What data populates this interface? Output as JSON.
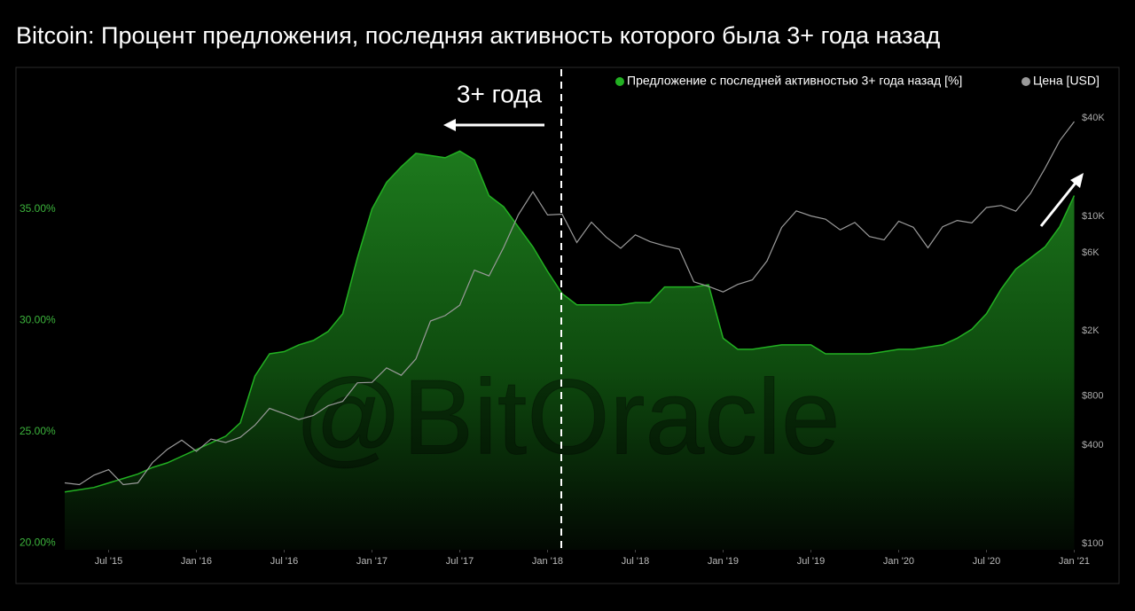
{
  "chart_data": {
    "type": "line",
    "title": "Bitcoin: Процент предложения, последняя активность которого была 3+ года назад",
    "annotation": "3+ года",
    "watermark": "@BitOracle",
    "x": [
      "2015-04",
      "2015-05",
      "2015-06",
      "2015-07",
      "2015-08",
      "2015-09",
      "2015-10",
      "2015-11",
      "2015-12",
      "2016-01",
      "2016-02",
      "2016-03",
      "2016-04",
      "2016-05",
      "2016-06",
      "2016-07",
      "2016-08",
      "2016-09",
      "2016-10",
      "2016-11",
      "2016-12",
      "2017-01",
      "2017-02",
      "2017-03",
      "2017-04",
      "2017-05",
      "2017-06",
      "2017-07",
      "2017-08",
      "2017-09",
      "2017-10",
      "2017-11",
      "2017-12",
      "2018-01",
      "2018-02",
      "2018-03",
      "2018-04",
      "2018-05",
      "2018-06",
      "2018-07",
      "2018-08",
      "2018-09",
      "2018-10",
      "2018-11",
      "2018-12",
      "2019-01",
      "2019-02",
      "2019-03",
      "2019-04",
      "2019-05",
      "2019-06",
      "2019-07",
      "2019-08",
      "2019-09",
      "2019-10",
      "2019-11",
      "2019-12",
      "2020-01",
      "2020-02",
      "2020-03",
      "2020-04",
      "2020-05",
      "2020-06",
      "2020-07",
      "2020-08",
      "2020-09",
      "2020-10",
      "2020-11",
      "2020-12",
      "2021-01"
    ],
    "series": [
      {
        "name": "Предложение с последней активностью 3+ года назад [%]",
        "type": "area",
        "color": "#22b022",
        "axis": "y",
        "values": [
          22.3,
          22.4,
          22.5,
          22.7,
          22.9,
          23.1,
          23.4,
          23.6,
          23.9,
          24.2,
          24.5,
          24.8,
          25.4,
          27.5,
          28.5,
          28.6,
          28.9,
          29.1,
          29.5,
          30.3,
          32.8,
          35.0,
          36.2,
          36.9,
          37.5,
          37.4,
          37.3,
          37.6,
          37.2,
          35.6,
          35.1,
          34.2,
          33.3,
          32.2,
          31.2,
          30.7,
          30.7,
          30.7,
          30.7,
          30.8,
          30.8,
          31.5,
          31.5,
          31.5,
          31.6,
          29.2,
          28.7,
          28.7,
          28.8,
          28.9,
          28.9,
          28.9,
          28.5,
          28.5,
          28.5,
          28.5,
          28.6,
          28.7,
          28.7,
          28.8,
          28.9,
          29.2,
          29.6,
          30.3,
          31.4,
          32.3,
          32.8,
          33.3,
          34.2,
          35.6
        ]
      },
      {
        "name": "Цена [USD]",
        "type": "line",
        "color": "#9a9a9a",
        "axis": "y2",
        "values": [
          236,
          230,
          263,
          284,
          230,
          236,
          314,
          377,
          430,
          368,
          437,
          416,
          448,
          531,
          673,
          624,
          575,
          609,
          698,
          742,
          963,
          970,
          1190,
          1071,
          1348,
          2300,
          2480,
          2875,
          4700,
          4340,
          6470,
          10230,
          14150,
          10220,
          10330,
          6930,
          9240,
          7490,
          6390,
          7730,
          7030,
          6620,
          6320,
          3990,
          3740,
          3460,
          3850,
          4100,
          5350,
          8570,
          10820,
          10080,
          9630,
          8290,
          9200,
          7550,
          7200,
          9350,
          8590,
          6440,
          8660,
          9460,
          9140,
          11350,
          11680,
          10780,
          13800,
          19700,
          29000,
          38000
        ]
      }
    ],
    "xlim": [
      "2015-04",
      "2021-01"
    ],
    "xticks": [
      {
        "value": "2015-07",
        "label": "Jul '15"
      },
      {
        "value": "2016-01",
        "label": "Jan '16"
      },
      {
        "value": "2016-07",
        "label": "Jul '16"
      },
      {
        "value": "2017-01",
        "label": "Jan '17"
      },
      {
        "value": "2017-07",
        "label": "Jul '17"
      },
      {
        "value": "2018-01",
        "label": "Jan '18"
      },
      {
        "value": "2018-07",
        "label": "Jul '18"
      },
      {
        "value": "2019-01",
        "label": "Jan '19"
      },
      {
        "value": "2019-07",
        "label": "Jul '19"
      },
      {
        "value": "2020-01",
        "label": "Jan '20"
      },
      {
        "value": "2020-07",
        "label": "Jul '20"
      },
      {
        "value": "2021-01",
        "label": "Jan '21"
      }
    ],
    "ylim": [
      19.7,
      41
    ],
    "yticks": [
      {
        "value": 20,
        "label": "20.00%"
      },
      {
        "value": 25,
        "label": "25.00%"
      },
      {
        "value": 30,
        "label": "30.00%"
      },
      {
        "value": 35,
        "label": "35.00%"
      }
    ],
    "y2lim": [
      92,
      72800
    ],
    "y2log": true,
    "y2ticks": [
      {
        "value": 100,
        "label": "$100"
      },
      {
        "value": 400,
        "label": "$400"
      },
      {
        "value": 800,
        "label": "$800"
      },
      {
        "value": 2000,
        "label": "$2K"
      },
      {
        "value": 6000,
        "label": "$6K"
      },
      {
        "value": 10000,
        "label": "$10K"
      },
      {
        "value": 40000,
        "label": "$40K"
      }
    ],
    "grid": false
  }
}
